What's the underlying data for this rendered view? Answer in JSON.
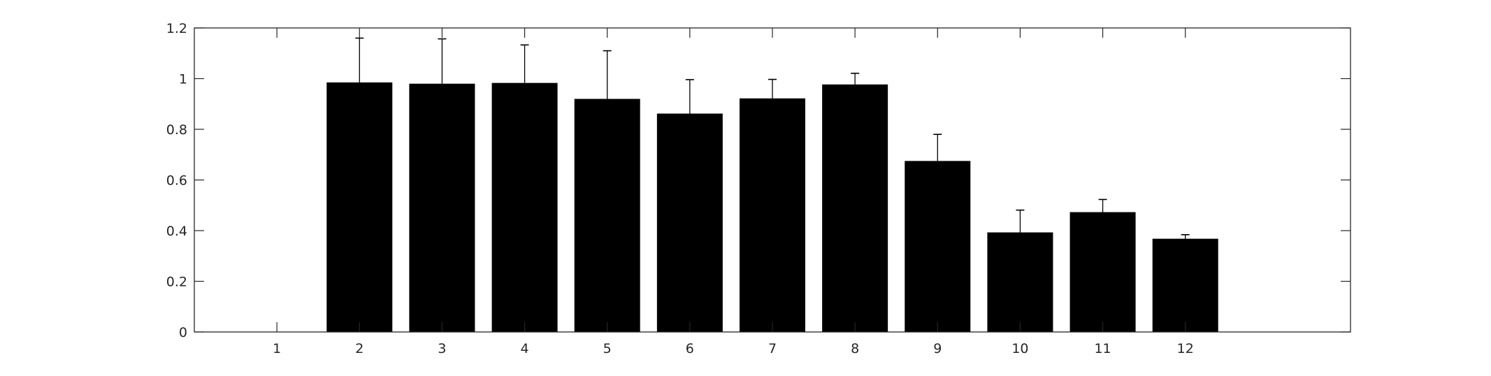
{
  "chart_data": {
    "type": "bar",
    "title": "",
    "xlabel": "",
    "ylabel": "",
    "categories": [
      "1",
      "2",
      "3",
      "4",
      "5",
      "6",
      "7",
      "8",
      "9",
      "10",
      "11",
      "12"
    ],
    "values": [
      0,
      0.985,
      0.98,
      0.983,
      0.92,
      0.862,
      0.922,
      0.977,
      0.675,
      0.393,
      0.473,
      0.368
    ],
    "errors": [
      0,
      0.175,
      0.177,
      0.15,
      0.19,
      0.134,
      0.075,
      0.044,
      0.105,
      0.088,
      0.05,
      0.016
    ],
    "xlim": [
      0,
      14
    ],
    "ylim": [
      0,
      1.2
    ],
    "yticks": [
      0,
      0.2,
      0.4,
      0.6,
      0.8,
      1,
      1.2
    ],
    "ytick_labels": [
      "0",
      "0.2",
      "0.4",
      "0.6",
      "0.8",
      "1",
      "1.2"
    ],
    "grid": false,
    "bar_color": "#000000",
    "axis_color": "#262626"
  }
}
